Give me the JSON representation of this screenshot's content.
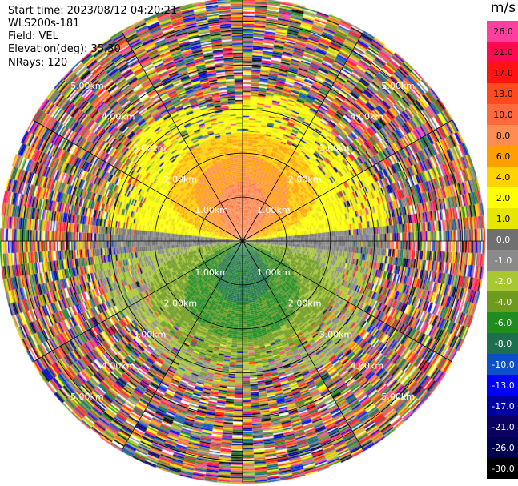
{
  "header": {
    "start_time": "Start time: 2023/08/12 04:20:21",
    "instrument": "WLS200s-181",
    "field": "Field: VEL",
    "elevation": "Elevation(deg): 35.30",
    "nrays": "NRays: 120"
  },
  "colorbar": {
    "unit": "m/s",
    "ticks": [
      "26.0",
      "21.0",
      "17.0",
      "13.0",
      "10.0",
      "8.0",
      "6.0",
      "4.0",
      "2.0",
      "1.0",
      "0.0",
      "-1.0",
      "-2.0",
      "-4.0",
      "-6.0",
      "-8.0",
      "-10.0",
      "-13.0",
      "-17.0",
      "-21.0",
      "-26.0",
      "-30.0"
    ],
    "colors": [
      "#ff3fa0",
      "#ff0a50",
      "#ff1414",
      "#ff4a1e",
      "#ff6a3c",
      "#ff8c50",
      "#ffa000",
      "#ffd200",
      "#ffff00",
      "#e6e600",
      "#707070",
      "#8a8a8a",
      "#a8c832",
      "#6e9b1e",
      "#1e8c1e",
      "#1e6e50",
      "#0a50c8",
      "#0000ff",
      "#0000a0",
      "#0a0064",
      "#000050",
      "#000000"
    ]
  },
  "chart_data": {
    "type": "ppi",
    "field": "VEL",
    "unit": "m/s",
    "nrays": 120,
    "range_rings_km": [
      1.0,
      2.0,
      3.0,
      4.0,
      5.0
    ],
    "ring_labels": [
      "1.00km",
      "2.00km",
      "3.00km",
      "4.00km",
      "5.00km"
    ],
    "max_range_km": 5.5
  }
}
